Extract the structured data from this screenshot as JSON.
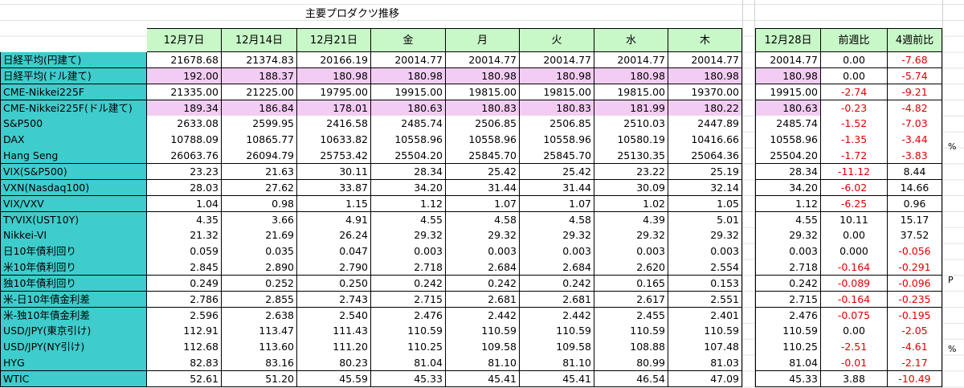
{
  "title": "主要プロダクツ推移",
  "headers": [
    "12月7日",
    "12月14日",
    "12月21日",
    "金",
    "月",
    "火",
    "水",
    "木"
  ],
  "right_headers": [
    "12月28日",
    "前週比",
    "4週前比"
  ],
  "rows": [
    {
      "label": "日経平均(円建て)",
      "values": [
        "21678.68",
        "21374.83",
        "20166.19",
        "20014.77",
        "20014.77",
        "20014.77",
        "20014.77",
        "20014.77"
      ],
      "right": [
        "20014.77",
        "0.00",
        "-7.68"
      ]
    },
    {
      "label": "日経平均(ドル建て)",
      "values": [
        "192.00",
        "188.37",
        "180.98",
        "180.98",
        "180.98",
        "180.98",
        "180.98",
        "180.98"
      ],
      "right": [
        "180.98",
        "0.00",
        "-5.74"
      ]
    },
    {
      "label": "CME-Nikkei225F",
      "values": [
        "21335.00",
        "21225.00",
        "19795.00",
        "19915.00",
        "19815.00",
        "19815.00",
        "19815.00",
        "19370.00"
      ],
      "right": [
        "19915.00",
        "-2.74",
        "-9.21"
      ]
    },
    {
      "label": "CME-Nikkei225F(ドル建て)",
      "values": [
        "189.34",
        "186.84",
        "178.01",
        "180.63",
        "180.83",
        "180.83",
        "181.99",
        "180.22"
      ],
      "right": [
        "180.63",
        "-0.23",
        "-4.82"
      ]
    },
    {
      "label": "S&P500",
      "values": [
        "2633.08",
        "2599.95",
        "2416.58",
        "2485.74",
        "2506.85",
        "2506.85",
        "2510.03",
        "2447.89"
      ],
      "right": [
        "2485.74",
        "-1.52",
        "-7.03"
      ]
    },
    {
      "label": "DAX",
      "values": [
        "10788.09",
        "10865.77",
        "10633.82",
        "10558.96",
        "10558.96",
        "10558.96",
        "10580.19",
        "10416.66"
      ],
      "right": [
        "10558.96",
        "-1.35",
        "-3.44"
      ]
    },
    {
      "label": "Hang Seng",
      "values": [
        "26063.76",
        "26094.79",
        "25753.42",
        "25504.20",
        "25845.70",
        "25845.70",
        "25130.35",
        "25064.36"
      ],
      "right": [
        "25504.20",
        "-1.72",
        "-3.83"
      ]
    },
    {
      "label": "VIX(S&P500)",
      "values": [
        "23.23",
        "21.63",
        "30.11",
        "28.34",
        "25.42",
        "25.42",
        "23.22",
        "25.19"
      ],
      "right": [
        "28.34",
        "-11.12",
        "8.44"
      ]
    },
    {
      "label": "VXN(Nasdaq100)",
      "values": [
        "28.03",
        "27.62",
        "33.87",
        "34.20",
        "31.44",
        "31.44",
        "30.09",
        "32.14"
      ],
      "right": [
        "34.20",
        "-6.02",
        "14.66"
      ]
    },
    {
      "label": "VIX/VXV",
      "values": [
        "1.04",
        "0.98",
        "1.15",
        "1.12",
        "1.07",
        "1.07",
        "1.02",
        "1.05"
      ],
      "right": [
        "1.12",
        "-6.25",
        "0.96"
      ]
    },
    {
      "label": "TYVIX(UST10Y)",
      "values": [
        "4.35",
        "3.66",
        "4.91",
        "4.55",
        "4.58",
        "4.58",
        "4.39",
        "5.01"
      ],
      "right": [
        "4.55",
        "10.11",
        "15.17"
      ]
    },
    {
      "label": "Nikkei-VI",
      "values": [
        "21.32",
        "21.69",
        "26.24",
        "29.32",
        "29.32",
        "29.32",
        "29.32",
        "29.32"
      ],
      "right": [
        "29.32",
        "0.00",
        "37.52"
      ]
    },
    {
      "label": "日10年債利回り",
      "values": [
        "0.059",
        "0.035",
        "0.047",
        "0.003",
        "0.003",
        "0.003",
        "0.003",
        "0.003"
      ],
      "right": [
        "0.003",
        "0.000",
        "-0.056"
      ]
    },
    {
      "label": "米10年債利回り",
      "values": [
        "2.845",
        "2.890",
        "2.790",
        "2.718",
        "2.684",
        "2.684",
        "2.620",
        "2.554"
      ],
      "right": [
        "2.718",
        "-0.164",
        "-0.291"
      ]
    },
    {
      "label": "独10年債利回り",
      "values": [
        "0.249",
        "0.252",
        "0.250",
        "0.242",
        "0.242",
        "0.242",
        "0.165",
        "0.153"
      ],
      "right": [
        "0.242",
        "-0.089",
        "-0.096"
      ]
    },
    {
      "label": "米-日10年債金利差",
      "values": [
        "2.786",
        "2.855",
        "2.743",
        "2.715",
        "2.681",
        "2.681",
        "2.617",
        "2.551"
      ],
      "right": [
        "2.715",
        "-0.164",
        "-0.235"
      ]
    },
    {
      "label": "米-独10年債金利差",
      "values": [
        "2.596",
        "2.638",
        "2.540",
        "2.476",
        "2.442",
        "2.442",
        "2.455",
        "2.401"
      ],
      "right": [
        "2.476",
        "-0.075",
        "-0.195"
      ]
    },
    {
      "label": "USD/JPY(東京引け)",
      "values": [
        "112.91",
        "113.47",
        "111.43",
        "110.59",
        "110.59",
        "110.59",
        "110.59",
        "110.59"
      ],
      "right": [
        "110.59",
        "0.00",
        "-2.05"
      ]
    },
    {
      "label": "USD/JPY(NY引け)",
      "values": [
        "112.68",
        "113.60",
        "111.20",
        "110.25",
        "109.58",
        "109.58",
        "108.88",
        "107.48"
      ],
      "right": [
        "110.25",
        "-2.51",
        "-4.61"
      ]
    },
    {
      "label": "HYG",
      "values": [
        "82.83",
        "83.16",
        "80.23",
        "81.04",
        "81.10",
        "81.10",
        "80.99",
        "81.03"
      ],
      "right": [
        "81.04",
        "-0.01",
        "-2.17"
      ]
    },
    {
      "label": "WTIC",
      "values": [
        "52.61",
        "51.20",
        "45.59",
        "45.33",
        "45.41",
        "45.41",
        "46.54",
        "47.09"
      ],
      "right": [
        "45.33",
        "3.88",
        "-10.49"
      ]
    }
  ],
  "side_notes": [
    "%",
    "P",
    "%"
  ]
}
